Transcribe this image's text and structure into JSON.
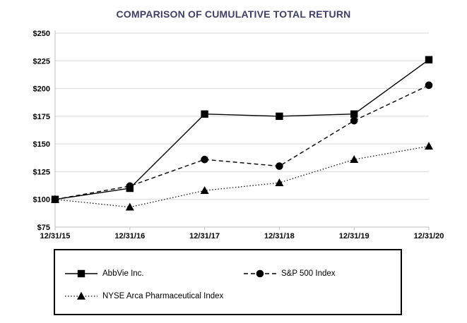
{
  "page": {
    "background": "#ffffff"
  },
  "chart_data": {
    "type": "line",
    "title": "COMPARISON OF CUMULATIVE TOTAL RETURN",
    "title_color": "#3F3F66",
    "categories": [
      "12/31/15",
      "12/31/16",
      "12/31/17",
      "12/31/18",
      "12/31/19",
      "12/31/20"
    ],
    "xlabel": "",
    "ylabel": "",
    "ylim": [
      75,
      250
    ],
    "y_tick_step": 25,
    "y_tick_labels": [
      "$75",
      "$100",
      "$125",
      "$150",
      "$175",
      "$200",
      "$225",
      "$250"
    ],
    "grid": "horizontal",
    "gridline_color": "#D9D9D9",
    "axis_color": "#BFBFBF",
    "legend_position": "bottom-boxed",
    "series": [
      {
        "name": "AbbVie Inc.",
        "marker": "square",
        "line_style": "solid",
        "color": "#000000",
        "values": [
          100,
          110,
          177,
          175,
          177,
          226
        ]
      },
      {
        "name": "S&P 500 Index",
        "marker": "circle",
        "line_style": "dashed",
        "color": "#000000",
        "values": [
          100,
          112,
          136,
          130,
          171,
          203
        ]
      },
      {
        "name": "NYSE Arca Pharmaceutical Index",
        "marker": "triangle",
        "line_style": "dotted",
        "color": "#000000",
        "values": [
          100,
          93,
          108,
          115,
          136,
          148
        ]
      }
    ]
  }
}
